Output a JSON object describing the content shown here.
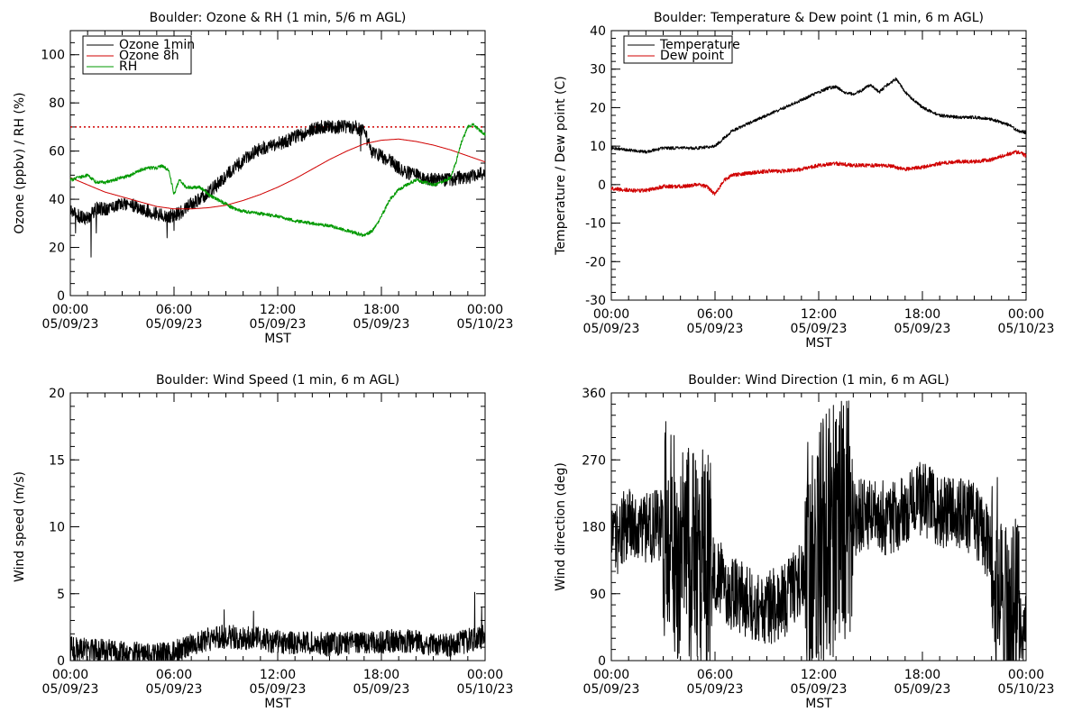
{
  "chart_data": [
    {
      "id": "ozone",
      "type": "line",
      "title": "Boulder: Ozone & RH (1 min, 5/6 m AGL)",
      "ylabel": "Ozone (ppbv) / RH (%)",
      "xlabel": "MST",
      "xlim": [
        0,
        24
      ],
      "ylim": [
        0,
        110
      ],
      "yticks": [
        0,
        20,
        40,
        60,
        80,
        100
      ],
      "yminor_step": 5,
      "xticks": [
        {
          "x": 0,
          "time": "00:00",
          "date": "05/09/23"
        },
        {
          "x": 6,
          "time": "06:00",
          "date": "05/09/23"
        },
        {
          "x": 12,
          "time": "12:00",
          "date": "05/09/23"
        },
        {
          "x": 18,
          "time": "18:00",
          "date": "05/09/23"
        },
        {
          "x": 24,
          "time": "00:00",
          "date": "05/10/23"
        }
      ],
      "reference_line": {
        "y": 70,
        "color": "#d00000",
        "style": "dotted"
      },
      "legend_position": "top-left",
      "series": [
        {
          "name": "Ozone 1min",
          "color": "#000000",
          "noise": 2.8,
          "spikes": [
            [
              0.3,
              26
            ],
            [
              1.2,
              16
            ],
            [
              1.5,
              26
            ],
            [
              5.6,
              24
            ],
            [
              6.0,
              27
            ],
            [
              16.8,
              60
            ]
          ],
          "x": [
            0,
            0.5,
            1,
            1.5,
            2,
            2.5,
            3,
            3.5,
            4,
            4.5,
            5,
            5.5,
            6,
            6.5,
            7,
            7.5,
            8,
            8.5,
            9,
            9.5,
            10,
            10.5,
            11,
            11.5,
            12,
            12.5,
            13,
            13.5,
            14,
            14.5,
            15,
            15.5,
            16,
            16.5,
            17,
            17.5,
            18,
            18.5,
            19,
            19.5,
            20,
            20.5,
            21,
            21.5,
            22,
            22.5,
            23,
            23.5,
            24
          ],
          "y": [
            35,
            33,
            32,
            36,
            36,
            37,
            38,
            38,
            36,
            35,
            34,
            33,
            33,
            35,
            38,
            40,
            43,
            46,
            50,
            53,
            56,
            59,
            61,
            62,
            63,
            64,
            66,
            67,
            69,
            70,
            70,
            70,
            70,
            70,
            68,
            59,
            58,
            56,
            53,
            51,
            50,
            49,
            48,
            48,
            48,
            49,
            49,
            50,
            51
          ]
        },
        {
          "name": "Ozone 8h",
          "color": "#d00000",
          "noise": 0,
          "x": [
            0,
            1,
            2,
            3,
            4,
            5,
            6,
            7,
            8,
            9,
            10,
            11,
            12,
            13,
            14,
            15,
            16,
            17,
            18,
            19,
            20,
            21,
            22,
            23,
            24
          ],
          "y": [
            49,
            46,
            43,
            41,
            39,
            37,
            36,
            36,
            36.5,
            37.5,
            39.5,
            42,
            45,
            48.5,
            52.5,
            56.5,
            60,
            63,
            64.5,
            65,
            64,
            62.5,
            60.5,
            58,
            55.5
          ]
        },
        {
          "name": "RH",
          "color": "#009900",
          "noise": 0.7,
          "x": [
            0,
            0.5,
            1,
            1.5,
            2,
            2.5,
            3,
            3.5,
            4,
            4.5,
            5,
            5.3,
            5.7,
            6,
            6.3,
            6.7,
            7,
            7.5,
            8,
            8.5,
            9,
            9.5,
            10,
            11,
            12,
            13,
            14,
            15,
            16,
            16.5,
            17,
            17.5,
            18,
            18.5,
            19,
            19.5,
            20,
            20.5,
            21,
            21.5,
            22,
            22.3,
            22.6,
            23,
            23.3,
            23.6,
            24
          ],
          "y": [
            48,
            49,
            50,
            47,
            47,
            48,
            49,
            50,
            52,
            53,
            53,
            54,
            52,
            42,
            48,
            45,
            45,
            45,
            42,
            40,
            38,
            36,
            35,
            34,
            33,
            31,
            30,
            29,
            27,
            26,
            25,
            27,
            33,
            40,
            44,
            46,
            48,
            47,
            46,
            47,
            49,
            55,
            63,
            70,
            71,
            69,
            67
          ]
        }
      ]
    },
    {
      "id": "temp",
      "type": "line",
      "title": "Boulder: Temperature & Dew point (1 min, 6 m AGL)",
      "ylabel": "Temperature / Dew point (C)",
      "xlabel": "MST",
      "xlim": [
        0,
        24
      ],
      "ylim": [
        -30,
        40
      ],
      "yticks": [
        -30,
        -20,
        -10,
        0,
        10,
        20,
        30,
        40
      ],
      "yminor_step": 2,
      "xticks": [
        {
          "x": 0,
          "time": "00:00",
          "date": "05/09/23"
        },
        {
          "x": 6,
          "time": "06:00",
          "date": "05/09/23"
        },
        {
          "x": 12,
          "time": "12:00",
          "date": "05/09/23"
        },
        {
          "x": 18,
          "time": "18:00",
          "date": "05/09/23"
        },
        {
          "x": 24,
          "time": "00:00",
          "date": "05/10/23"
        }
      ],
      "legend_position": "top-left",
      "series": [
        {
          "name": "Temperature",
          "color": "#000000",
          "noise": 0.4,
          "x": [
            0,
            1,
            2,
            3,
            4,
            5,
            6,
            7,
            8,
            9,
            10,
            11,
            12,
            12.5,
            13,
            13.5,
            14,
            14.5,
            15,
            15.5,
            16,
            16.5,
            17,
            17.5,
            18,
            19,
            20,
            21,
            22,
            23,
            23.5,
            24
          ],
          "y": [
            9.5,
            9,
            8.5,
            9.5,
            9.5,
            9.5,
            10,
            14,
            16,
            18,
            20,
            22,
            24,
            25,
            25.5,
            24,
            23.5,
            24.5,
            26,
            24,
            26,
            27.5,
            24,
            22,
            20,
            18,
            17.5,
            17.5,
            17,
            15.5,
            14,
            13.5
          ]
        },
        {
          "name": "Dew point",
          "color": "#d00000",
          "noise": 0.5,
          "x": [
            0,
            1,
            2,
            3,
            4,
            5,
            5.5,
            6,
            6.5,
            7,
            8,
            9,
            10,
            11,
            12,
            13,
            14,
            15,
            16,
            17,
            18,
            19,
            20,
            21,
            22,
            23,
            23.5,
            24
          ],
          "y": [
            -1,
            -1.5,
            -1.5,
            -0.5,
            -0.5,
            0,
            -0.5,
            -2.5,
            1,
            2.5,
            3,
            3.5,
            3.5,
            4,
            5,
            5.5,
            5,
            5,
            5,
            4,
            4.5,
            5.5,
            6,
            6,
            6.5,
            8,
            8.5,
            7.5
          ]
        }
      ]
    },
    {
      "id": "wspd",
      "type": "line",
      "title": "Boulder: Wind Speed (1 min, 6 m AGL)",
      "ylabel": "Wind speed (m/s)",
      "xlabel": "MST",
      "xlim": [
        0,
        24
      ],
      "ylim": [
        0,
        20
      ],
      "yticks": [
        0,
        5,
        10,
        15,
        20
      ],
      "yminor_step": 1,
      "xticks": [
        {
          "x": 0,
          "time": "00:00",
          "date": "05/09/23"
        },
        {
          "x": 6,
          "time": "06:00",
          "date": "05/09/23"
        },
        {
          "x": 12,
          "time": "12:00",
          "date": "05/09/23"
        },
        {
          "x": 18,
          "time": "18:00",
          "date": "05/09/23"
        },
        {
          "x": 24,
          "time": "00:00",
          "date": "05/10/23"
        }
      ],
      "series": [
        {
          "name": "",
          "color": "#000000",
          "noise": 0.9,
          "floor": 0,
          "spikes": [
            [
              8.9,
              3.8
            ],
            [
              10.6,
              3.7
            ],
            [
              23.4,
              5.1
            ],
            [
              23.8,
              4.0
            ]
          ],
          "x": [
            0,
            1,
            2,
            3,
            4,
            5,
            6,
            7,
            8,
            9,
            10,
            11,
            12,
            13,
            14,
            15,
            16,
            17,
            18,
            19,
            20,
            21,
            22,
            23,
            24
          ],
          "y": [
            0.9,
            0.8,
            0.7,
            0.6,
            0.5,
            0.4,
            0.6,
            1.2,
            1.6,
            1.8,
            1.7,
            1.6,
            1.4,
            1.3,
            1.4,
            1.2,
            1.3,
            1.3,
            1.4,
            1.5,
            1.5,
            1.2,
            1.1,
            1.5,
            1.8
          ]
        }
      ]
    },
    {
      "id": "wdir",
      "type": "line",
      "title": "Boulder: Wind Direction (1 min, 6 m AGL)",
      "ylabel": "Wind direction (deg)",
      "xlabel": "MST",
      "xlim": [
        0,
        24
      ],
      "ylim": [
        0,
        360
      ],
      "yticks": [
        0,
        90,
        180,
        270,
        360
      ],
      "yminor_step": 15,
      "xticks": [
        {
          "x": 0,
          "time": "00:00",
          "date": "05/09/23"
        },
        {
          "x": 6,
          "time": "06:00",
          "date": "05/09/23"
        },
        {
          "x": 12,
          "time": "12:00",
          "date": "05/09/23"
        },
        {
          "x": 18,
          "time": "18:00",
          "date": "05/09/23"
        },
        {
          "x": 24,
          "time": "00:00",
          "date": "05/10/23"
        }
      ],
      "series": [
        {
          "name": "",
          "color": "#000000",
          "noise": 50,
          "floor": 0,
          "ceil": 360,
          "spread_segments": [
            [
              3,
              5.8,
              150
            ],
            [
              11.2,
              14,
              170
            ],
            [
              22,
              23.6,
              140
            ]
          ],
          "x": [
            0,
            1,
            2,
            3,
            4,
            5,
            6,
            7,
            8,
            9,
            10,
            11,
            12,
            13,
            14,
            15,
            16,
            17,
            18,
            19,
            20,
            21,
            22,
            23,
            24
          ],
          "y": [
            150,
            190,
            180,
            180,
            140,
            150,
            120,
            90,
            80,
            70,
            80,
            110,
            150,
            180,
            190,
            200,
            190,
            200,
            220,
            200,
            200,
            190,
            150,
            60,
            40
          ]
        }
      ]
    }
  ]
}
